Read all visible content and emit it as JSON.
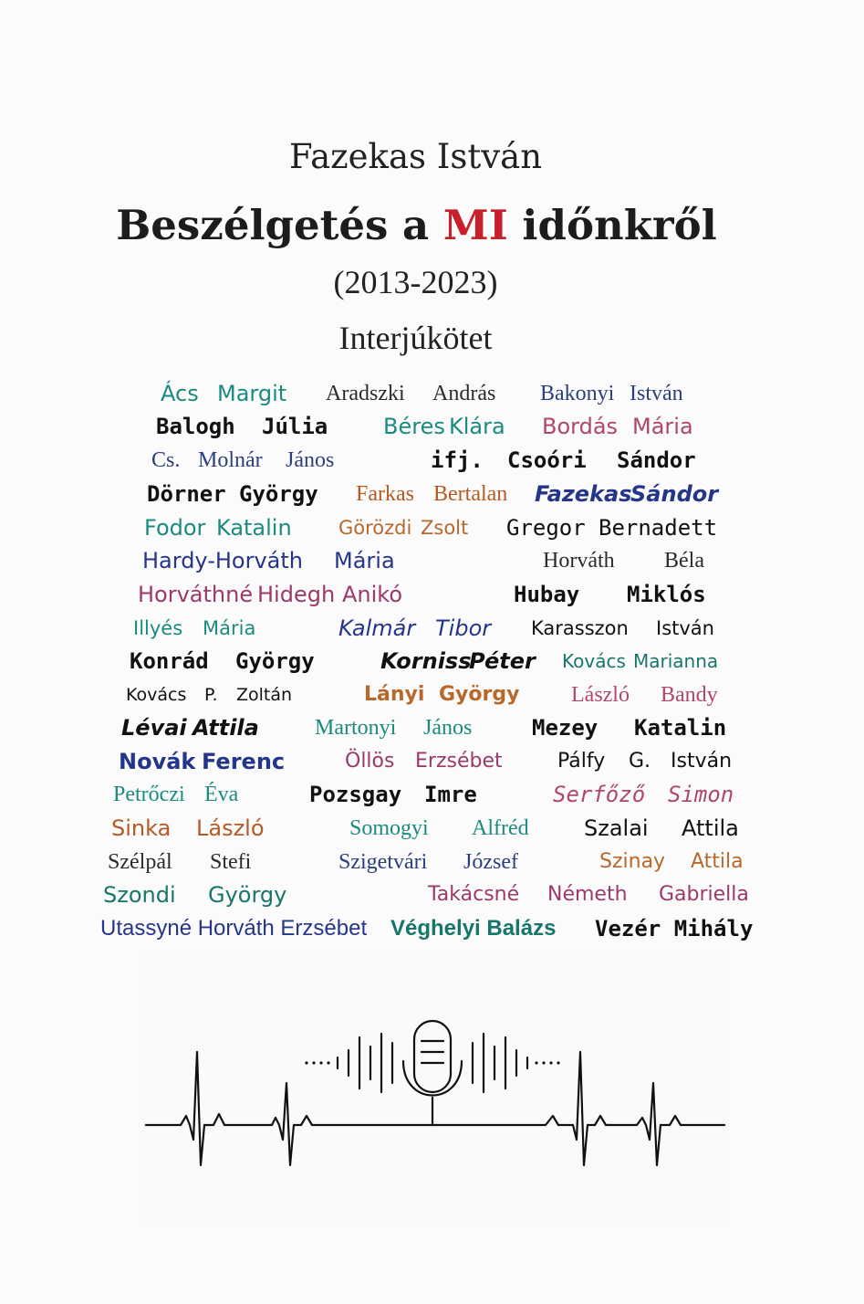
{
  "author": "Fazekas István",
  "title": {
    "before": "Beszélgetés a ",
    "highlight": "MI",
    "after": " időnkről"
  },
  "years": "(2013-2023)",
  "subtitle": "Interjúkötet",
  "colors": {
    "highlight": "#c8202a",
    "text": "#1c1c1c"
  },
  "icons": [
    "microphone-icon",
    "heartbeat-line-icon"
  ],
  "contributors": [
    {
      "w": [
        "Ács",
        "Margit"
      ]
    },
    {
      "w": [
        "Aradszki",
        "András"
      ]
    },
    {
      "w": [
        "Bakonyi",
        "István"
      ]
    },
    {
      "w": [
        "Balogh",
        "Júlia"
      ]
    },
    {
      "w": [
        "Béres",
        "Klára"
      ]
    },
    {
      "w": [
        "Bordás",
        "Mária"
      ]
    },
    {
      "w": [
        "Cs.",
        "Molnár",
        "János"
      ]
    },
    {
      "w": [
        "ifj.",
        "Csoóri",
        "Sándor"
      ]
    },
    {
      "w": [
        "Dörner",
        "György"
      ]
    },
    {
      "w": [
        "Farkas",
        "Bertalan"
      ]
    },
    {
      "w": [
        "Fazekas",
        "Sándor"
      ]
    },
    {
      "w": [
        "Fodor",
        "Katalin"
      ]
    },
    {
      "w": [
        "Görözdi",
        "Zsolt"
      ]
    },
    {
      "w": [
        "Gregor",
        "Bernadett"
      ]
    },
    {
      "w": [
        "Hardy-Horváth",
        "Mária"
      ]
    },
    {
      "w": [
        "Horváth",
        "Béla"
      ]
    },
    {
      "w": [
        "Horváthné",
        "Hidegh",
        "Anikó"
      ]
    },
    {
      "w": [
        "Hubay",
        "Miklós"
      ]
    },
    {
      "w": [
        "Illyés",
        "Mária"
      ]
    },
    {
      "w": [
        "Kalmár",
        "Tibor"
      ]
    },
    {
      "w": [
        "Karasszon",
        "István"
      ]
    },
    {
      "w": [
        "Konrád",
        "György"
      ]
    },
    {
      "w": [
        "Korniss",
        "Péter"
      ]
    },
    {
      "w": [
        "Kovács",
        "Marianna"
      ]
    },
    {
      "w": [
        "Kovács",
        "P.",
        "Zoltán"
      ]
    },
    {
      "w": [
        "Lányi",
        "György"
      ]
    },
    {
      "w": [
        "László",
        "Bandy"
      ]
    },
    {
      "w": [
        "Lévai",
        "Attila"
      ]
    },
    {
      "w": [
        "Martonyi",
        "János"
      ]
    },
    {
      "w": [
        "Mezey",
        "Katalin"
      ]
    },
    {
      "w": [
        "Novák",
        "Ferenc"
      ]
    },
    {
      "w": [
        "Öllös",
        "Erzsébet"
      ]
    },
    {
      "w": [
        "Pálfy",
        "G.",
        "István"
      ]
    },
    {
      "w": [
        "Petrőczi",
        "Éva"
      ]
    },
    {
      "w": [
        "Pozsgay",
        "Imre"
      ]
    },
    {
      "w": [
        "Serfőző",
        "Simon"
      ]
    },
    {
      "w": [
        "Sinka",
        "László"
      ]
    },
    {
      "w": [
        "Somogyi",
        "Alfréd"
      ]
    },
    {
      "w": [
        "Szalai",
        "Attila"
      ]
    },
    {
      "w": [
        "Szélpál",
        "Stefi"
      ]
    },
    {
      "w": [
        "Szigetvári",
        "József"
      ]
    },
    {
      "w": [
        "Szinay",
        "Attila"
      ]
    },
    {
      "w": [
        "Szondi",
        "György"
      ]
    },
    {
      "w": [
        "Takácsné",
        "Németh",
        "Gabriella"
      ]
    },
    {
      "w": [
        "Utassyné Horváth Erzsébet"
      ]
    },
    {
      "w": [
        "Véghelyi Balázs"
      ]
    },
    {
      "w": [
        "Vezér Mihály"
      ]
    }
  ]
}
